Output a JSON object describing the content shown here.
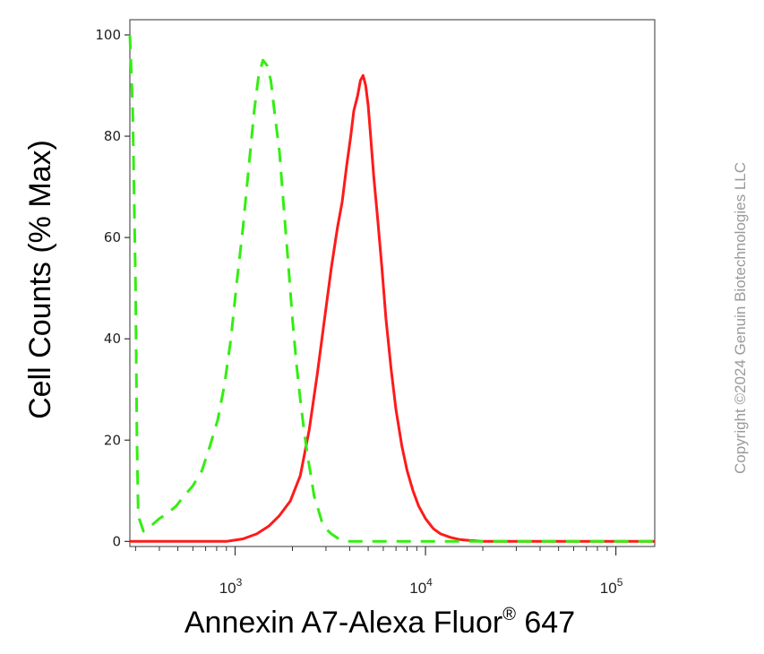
{
  "chart_data": {
    "type": "line",
    "title": "",
    "xlabel": "Annexin A7-Alexa Fluor",
    "xlabel_superscript": "®",
    "xlabel_suffix": " 647",
    "ylabel": "Cell Counts (% Max)",
    "x_scale": "log",
    "xlim": [
      280,
      160000
    ],
    "ylim": [
      -1,
      103
    ],
    "yticks": [
      0,
      20,
      40,
      60,
      80,
      100
    ],
    "xticks": [
      {
        "value": 1000,
        "base": "10",
        "exp": "3"
      },
      {
        "value": 10000,
        "base": "10",
        "exp": "4"
      },
      {
        "value": 100000,
        "base": "10",
        "exp": "5"
      }
    ],
    "grid": false,
    "legend": "none",
    "series": [
      {
        "color": "#ff1a1a",
        "style": "solid",
        "x": [
          280,
          900,
          1100,
          1300,
          1500,
          1700,
          1950,
          2200,
          2450,
          2700,
          2950,
          3200,
          3450,
          3650,
          3850,
          4050,
          4200,
          4400,
          4550,
          4700,
          4850,
          5000,
          5150,
          5350,
          5600,
          5900,
          6200,
          6600,
          7000,
          7500,
          8000,
          8600,
          9200,
          10000,
          11000,
          12000,
          13500,
          15000,
          17000,
          20000,
          30000,
          60000,
          160000
        ],
        "y": [
          0,
          0,
          0.5,
          1.5,
          3,
          5,
          8,
          13,
          22,
          33,
          44,
          54,
          62,
          67,
          74,
          80,
          85,
          88,
          91,
          92,
          90,
          86,
          80,
          72,
          64,
          54,
          44,
          34,
          26,
          19,
          14,
          10,
          7,
          4.5,
          2.5,
          1.5,
          0.8,
          0.4,
          0.2,
          0,
          0,
          0,
          0
        ]
      },
      {
        "color": "#33ee11",
        "style": "dashed",
        "x": [
          280,
          290,
          300,
          305,
          310,
          330,
          360,
          400,
          440,
          490,
          540,
          600,
          670,
          740,
          810,
          880,
          950,
          1020,
          1100,
          1180,
          1260,
          1330,
          1400,
          1470,
          1540,
          1620,
          1710,
          1800,
          1900,
          2000,
          2100,
          2200,
          2300,
          2400,
          2500,
          2600,
          2700,
          2850,
          3000,
          3200,
          3500,
          4000,
          6000,
          20000,
          160000
        ],
        "y": [
          100,
          85,
          50,
          20,
          5,
          2,
          3,
          4.5,
          5.5,
          7,
          9,
          11,
          14,
          19,
          24,
          31,
          40,
          51,
          62,
          74,
          85,
          92,
          95,
          94,
          91,
          84,
          77,
          66,
          55,
          44,
          35,
          28,
          22,
          17,
          13,
          9,
          7,
          4,
          2.5,
          1.5,
          0.5,
          0,
          0,
          0,
          0
        ]
      }
    ]
  },
  "watermark": "Copyright ©2024 Genuin Biotechnologies LLC"
}
